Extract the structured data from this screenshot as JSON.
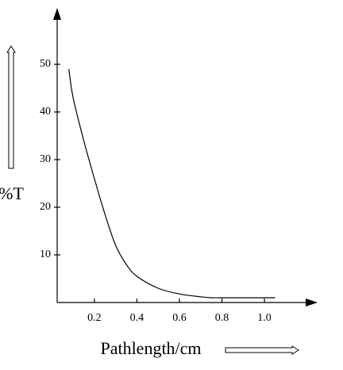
{
  "chart_data": {
    "type": "line",
    "x_label": "Pathlength/cm",
    "y_label": "%T",
    "x": [
      0.08,
      0.1,
      0.15,
      0.2,
      0.25,
      0.3,
      0.35,
      0.4,
      0.5,
      0.6,
      0.7,
      0.75,
      0.8,
      0.9,
      1.0,
      1.05
    ],
    "values": [
      49,
      43,
      34,
      26,
      18.5,
      12,
      8,
      5.5,
      3,
      1.8,
      1.2,
      1,
      1,
      1,
      1,
      1
    ],
    "color": "#000000",
    "xlim": [
      0.025,
      1.25
    ],
    "ylim": [
      0,
      60
    ],
    "xticks": [
      0.2,
      0.4,
      0.6,
      0.8,
      {
        "value": 1.0,
        "label": "1.0"
      }
    ],
    "yticks": [
      10,
      20,
      30,
      40,
      50
    ]
  }
}
